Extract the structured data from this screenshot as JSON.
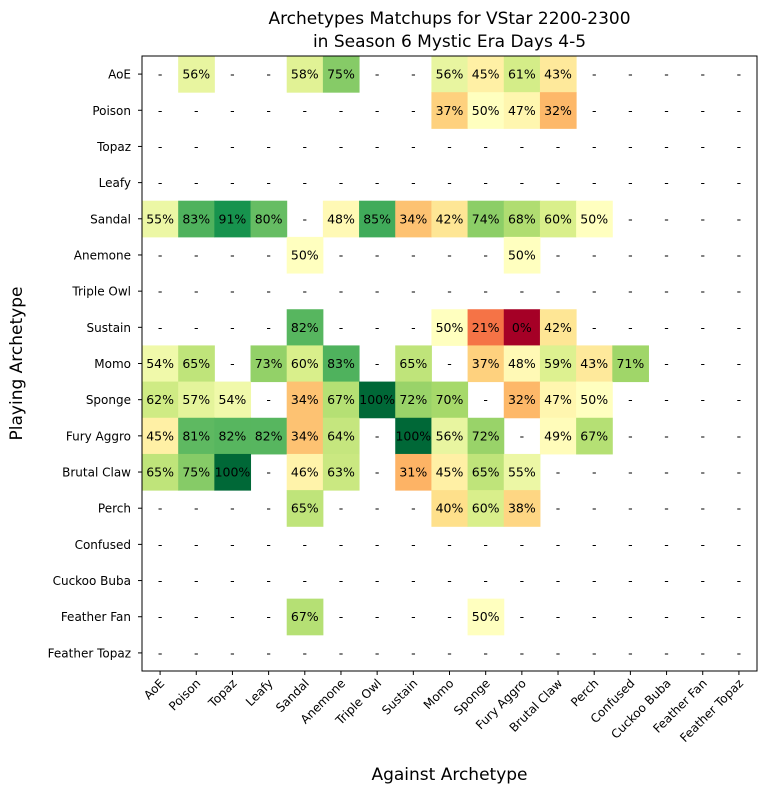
{
  "chart_data": {
    "type": "heatmap",
    "title": "Archetypes Matchups for VStar 2200-2300\nin Season 6 Mystic Era Days 4-5",
    "title_lines": [
      "Archetypes Matchups for VStar 2200-2300",
      "in Season 6 Mystic Era Days 4-5"
    ],
    "xlabel": "Against Archetype",
    "ylabel": "Playing Archetype",
    "colormap": "RdYlGn",
    "value_range": [
      0,
      100
    ],
    "missing_label": "-",
    "value_suffix": "%",
    "x_categories": [
      "AoE",
      "Poison",
      "Topaz",
      "Leafy",
      "Sandal",
      "Anemone",
      "Triple Owl",
      "Sustain",
      "Momo",
      "Sponge",
      "Fury Aggro",
      "Brutal Claw",
      "Perch",
      "Confused",
      "Cuckoo Buba",
      "Feather Fan",
      "Feather Topaz"
    ],
    "y_categories": [
      "AoE",
      "Poison",
      "Topaz",
      "Leafy",
      "Sandal",
      "Anemone",
      "Triple Owl",
      "Sustain",
      "Momo",
      "Sponge",
      "Fury Aggro",
      "Brutal Claw",
      "Perch",
      "Confused",
      "Cuckoo Buba",
      "Feather Fan",
      "Feather Topaz"
    ],
    "values": [
      [
        null,
        56,
        null,
        null,
        58,
        75,
        null,
        null,
        56,
        45,
        61,
        43,
        null,
        null,
        null,
        null,
        null
      ],
      [
        null,
        null,
        null,
        null,
        null,
        null,
        null,
        null,
        37,
        50,
        47,
        32,
        null,
        null,
        null,
        null,
        null
      ],
      [
        null,
        null,
        null,
        null,
        null,
        null,
        null,
        null,
        null,
        null,
        null,
        null,
        null,
        null,
        null,
        null,
        null
      ],
      [
        null,
        null,
        null,
        null,
        null,
        null,
        null,
        null,
        null,
        null,
        null,
        null,
        null,
        null,
        null,
        null,
        null
      ],
      [
        55,
        83,
        91,
        80,
        null,
        48,
        85,
        34,
        42,
        74,
        68,
        60,
        50,
        null,
        null,
        null,
        null
      ],
      [
        null,
        null,
        null,
        null,
        50,
        null,
        null,
        null,
        null,
        null,
        50,
        null,
        null,
        null,
        null,
        null,
        null
      ],
      [
        null,
        null,
        null,
        null,
        null,
        null,
        null,
        null,
        null,
        null,
        null,
        null,
        null,
        null,
        null,
        null,
        null
      ],
      [
        null,
        null,
        null,
        null,
        82,
        null,
        null,
        null,
        50,
        21,
        0,
        42,
        null,
        null,
        null,
        null,
        null
      ],
      [
        54,
        65,
        null,
        73,
        60,
        83,
        null,
        65,
        null,
        37,
        48,
        59,
        43,
        71,
        null,
        null,
        null
      ],
      [
        62,
        57,
        54,
        null,
        34,
        67,
        100,
        72,
        70,
        null,
        32,
        47,
        50,
        null,
        null,
        null,
        null
      ],
      [
        45,
        81,
        82,
        82,
        34,
        64,
        null,
        100,
        56,
        72,
        null,
        49,
        67,
        null,
        null,
        null,
        null
      ],
      [
        65,
        75,
        100,
        null,
        46,
        63,
        null,
        31,
        45,
        65,
        55,
        null,
        null,
        null,
        null,
        null,
        null
      ],
      [
        null,
        null,
        null,
        null,
        65,
        null,
        null,
        null,
        40,
        60,
        38,
        null,
        null,
        null,
        null,
        null,
        null
      ],
      [
        null,
        null,
        null,
        null,
        null,
        null,
        null,
        null,
        null,
        null,
        null,
        null,
        null,
        null,
        null,
        null,
        null
      ],
      [
        null,
        null,
        null,
        null,
        null,
        null,
        null,
        null,
        null,
        null,
        null,
        null,
        null,
        null,
        null,
        null,
        null
      ],
      [
        null,
        null,
        null,
        null,
        67,
        null,
        null,
        null,
        null,
        50,
        null,
        null,
        null,
        null,
        null,
        null,
        null
      ],
      [
        null,
        null,
        null,
        null,
        null,
        null,
        null,
        null,
        null,
        null,
        null,
        null,
        null,
        null,
        null,
        null,
        null
      ]
    ],
    "grid": false,
    "legend": "none"
  }
}
